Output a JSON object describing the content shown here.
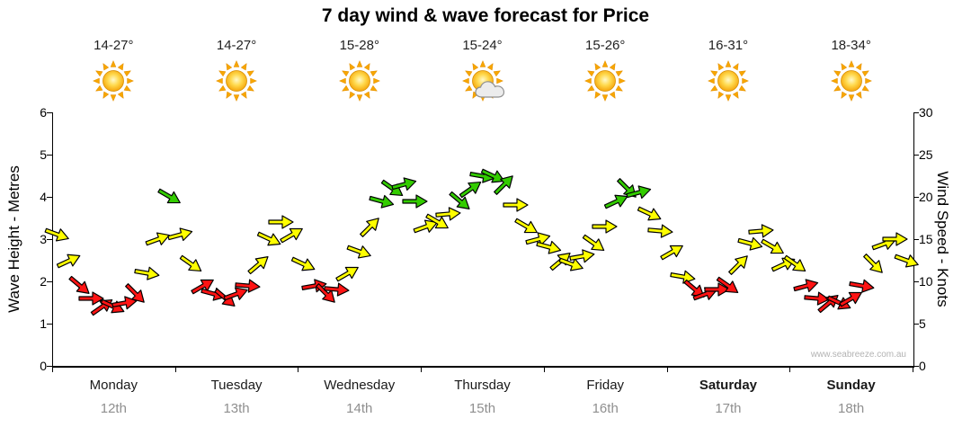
{
  "title": "7 day wind & wave forecast for Price",
  "watermark": "www.seabreeze.com.au",
  "axes": {
    "left_title": "Wave Height - Metres",
    "right_title": "Wind Speed - Knots",
    "left_ticks": [
      "0",
      "1",
      "2",
      "3",
      "4",
      "5",
      "6"
    ],
    "right_ticks": [
      "0",
      "5",
      "10",
      "15",
      "20",
      "25",
      "30"
    ]
  },
  "days": [
    {
      "name": "Monday",
      "date": "12th",
      "temp": "14-27°",
      "weather": "sunny",
      "bold": false
    },
    {
      "name": "Tuesday",
      "date": "13th",
      "temp": "14-27°",
      "weather": "sunny",
      "bold": false
    },
    {
      "name": "Wednesday",
      "date": "14th",
      "temp": "15-28°",
      "weather": "sunny",
      "bold": false
    },
    {
      "name": "Thursday",
      "date": "15th",
      "temp": "15-24°",
      "weather": "partly-cloudy",
      "bold": false
    },
    {
      "name": "Friday",
      "date": "16th",
      "temp": "15-26°",
      "weather": "sunny",
      "bold": false
    },
    {
      "name": "Saturday",
      "date": "17th",
      "temp": "16-31°",
      "weather": "sunny",
      "bold": true
    },
    {
      "name": "Sunday",
      "date": "18th",
      "temp": "18-34°",
      "weather": "sunny",
      "bold": true
    }
  ],
  "chart_data": {
    "type": "scatter",
    "subtype": "wind-arrow-band",
    "title": "7 day wind & wave forecast for Price",
    "categories": [
      "Monday 12th",
      "Tuesday 13th",
      "Wednesday 14th",
      "Thursday 15th",
      "Friday 16th",
      "Saturday 17th",
      "Sunday 18th"
    ],
    "samples_per_day": 11,
    "ylabel_left": "Wave Height - Metres",
    "ylabel_right": "Wind Speed - Knots",
    "ylim_left_metres": [
      0,
      6
    ],
    "ylim_right_knots": [
      0,
      30
    ],
    "axis_relation": "knots = metres x 5",
    "grid": false,
    "legend": false,
    "knots": [
      15.5,
      12.5,
      9.5,
      8,
      7,
      7,
      7.5,
      8.5,
      11,
      15,
      20,
      15.5,
      12,
      9.5,
      8.5,
      8,
      8.5,
      9.5,
      12,
      15,
      17,
      15.5,
      12,
      9.5,
      8.5,
      9,
      11,
      13.5,
      16.5,
      19.5,
      21,
      21.5,
      19.5,
      16.5,
      17,
      18,
      19.5,
      21,
      22.5,
      22.5,
      21.5,
      19,
      16.5,
      15,
      14,
      12.5,
      12,
      13,
      14.5,
      16.5,
      19.5,
      21,
      20.5,
      18,
      16,
      13.5,
      10.5,
      9,
      8.5,
      9,
      9.5,
      12,
      14.5,
      16,
      14,
      12,
      12,
      9.5,
      8,
      7.5,
      7.5,
      8,
      9.5,
      12,
      14.5,
      15,
      12.5
    ],
    "directions_deg": [
      20,
      -25,
      40,
      0,
      -35,
      25,
      -10,
      45,
      10,
      -20,
      30,
      -15,
      35,
      -30,
      15,
      40,
      -20,
      5,
      -40,
      25,
      0,
      -30,
      25,
      -10,
      45,
      5,
      -30,
      20,
      -45,
      15,
      35,
      -15,
      0,
      -20,
      30,
      -5,
      40,
      -35,
      10,
      25,
      -45,
      0,
      30,
      -15,
      15,
      -40,
      20,
      -10,
      35,
      0,
      -25,
      45,
      -15,
      25,
      5,
      -30,
      10,
      40,
      -20,
      0,
      35,
      -45,
      15,
      -5,
      30,
      -25,
      35,
      -15,
      5,
      -40,
      25,
      -30,
      10,
      45,
      -20,
      0,
      20
    ],
    "thresholds_knots": {
      "red_below": 10,
      "green_at_or_above": 19.5
    },
    "colors": {
      "light_wind": "#ff1414",
      "moderate_wind": "#ffff00",
      "fresh_wind": "#33cc00",
      "outline": "#000000"
    }
  }
}
